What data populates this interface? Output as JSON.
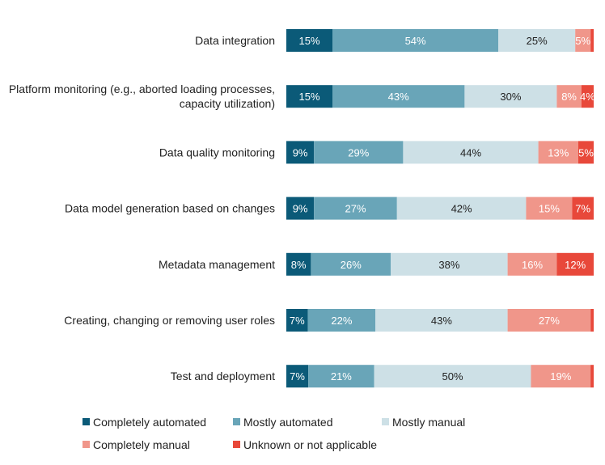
{
  "chart_data": {
    "type": "bar",
    "orientation": "horizontal",
    "stacked": true,
    "percent_scale": true,
    "categories": [
      "Data integration",
      "Platform monitoring (e.g., aborted loading processes, capacity utilization)",
      "Data quality monitoring",
      "Data model generation based on changes",
      "Metadata management",
      "Creating, changing or removing user roles",
      "Test and deployment"
    ],
    "category_lines": [
      [
        "Data integration"
      ],
      [
        "Platform monitoring (e.g., aborted loading processes,",
        "capacity utilization)"
      ],
      [
        "Data quality monitoring"
      ],
      [
        "Data model generation based on changes"
      ],
      [
        "Metadata management"
      ],
      [
        "Creating, changing or removing user roles"
      ],
      [
        "Test and deployment"
      ]
    ],
    "series": [
      {
        "name": "Completely automated",
        "color": "#0b5a78",
        "label_color": "#ffffff",
        "values": [
          15,
          15,
          9,
          9,
          8,
          7,
          7
        ]
      },
      {
        "name": "Mostly automated",
        "color": "#69a5b8",
        "label_color": "#ffffff",
        "values": [
          54,
          43,
          29,
          27,
          26,
          22,
          21
        ]
      },
      {
        "name": "Mostly manual",
        "color": "#cde0e6",
        "label_color": "#222222",
        "values": [
          25,
          30,
          44,
          42,
          38,
          43,
          50
        ]
      },
      {
        "name": "Completely manual",
        "color": "#f0968a",
        "label_color": "#ffffff",
        "values": [
          5,
          8,
          13,
          15,
          16,
          27,
          19
        ]
      },
      {
        "name": "Unknown or not applicable",
        "color": "#e8483a",
        "label_color": "#ffffff",
        "values": [
          1,
          4,
          5,
          7,
          12,
          1,
          1
        ]
      }
    ],
    "value_labels": [
      [
        "15%",
        "54%",
        "25%",
        "5%",
        ""
      ],
      [
        "15%",
        "43%",
        "30%",
        "8%",
        "4%"
      ],
      [
        "9%",
        "29%",
        "44%",
        "13%",
        "5%"
      ],
      [
        "9%",
        "27%",
        "42%",
        "15%",
        "7%"
      ],
      [
        "8%",
        "26%",
        "38%",
        "16%",
        "12%"
      ],
      [
        "7%",
        "22%",
        "43%",
        "27%",
        ""
      ],
      [
        "7%",
        "21%",
        "50%",
        "19%",
        ""
      ]
    ],
    "xlim": [
      0,
      100
    ],
    "legend_position": "bottom"
  }
}
